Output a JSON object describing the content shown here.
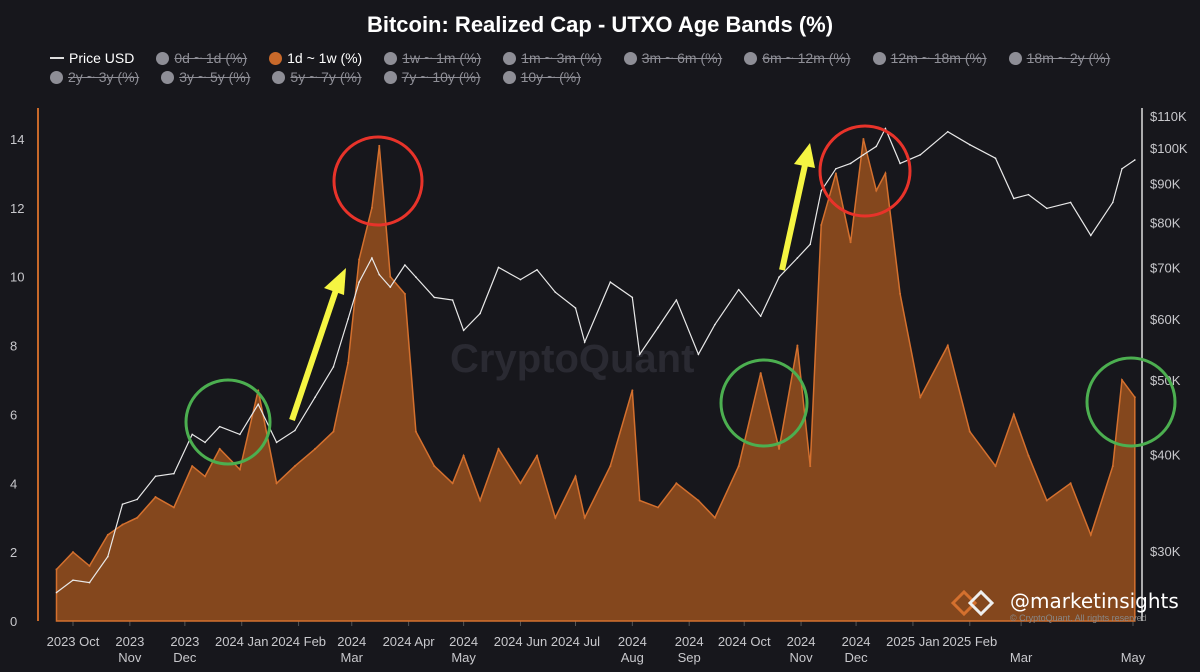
{
  "chart_data": {
    "type": "area",
    "title": "Bitcoin: Realized Cap - UTXO Age Bands (%)",
    "legend": [
      {
        "label": "Price USD",
        "active": true,
        "kind": "line"
      },
      {
        "label": "0d ~ 1d (%)",
        "active": false
      },
      {
        "label": "1d ~ 1w (%)",
        "active": true,
        "color": "#c8692a"
      },
      {
        "label": "1w ~ 1m (%)",
        "active": false
      },
      {
        "label": "1m ~ 3m (%)",
        "active": false
      },
      {
        "label": "3m ~ 6m (%)",
        "active": false
      },
      {
        "label": "6m ~ 12m (%)",
        "active": false
      },
      {
        "label": "12m ~ 18m (%)",
        "active": false
      },
      {
        "label": "18m ~ 2y (%)",
        "active": false
      },
      {
        "label": "2y ~ 3y (%)",
        "active": false
      },
      {
        "label": "3y ~ 5y (%)",
        "active": false
      },
      {
        "label": "5y ~ 7y (%)",
        "active": false
      },
      {
        "label": "7y ~ 10y (%)",
        "active": false
      },
      {
        "label": "10y ~ (%)",
        "active": false
      }
    ],
    "legend_placement": "top",
    "y_left": {
      "range": [
        0,
        14.5
      ],
      "ticks": [
        "0",
        "2",
        "4",
        "6",
        "8",
        "10",
        "12",
        "14"
      ]
    },
    "y_right": {
      "scale": "log",
      "ticks": [
        "$30K",
        "$40K",
        "$50K",
        "$60K",
        "$70K",
        "$80K",
        "$90K",
        "$100K",
        "$110K"
      ],
      "tick_values": [
        30,
        40,
        50,
        60,
        70,
        80,
        90,
        100,
        110
      ]
    },
    "x_ticks": [
      {
        "date": "2023-10-01",
        "l1": "2023 Oct",
        "l2": ""
      },
      {
        "date": "2023-11-01",
        "l1": "2023",
        "l2": "Nov"
      },
      {
        "date": "2023-12-01",
        "l1": "2023",
        "l2": "Dec"
      },
      {
        "date": "2024-01-01",
        "l1": "2024 Jan",
        "l2": ""
      },
      {
        "date": "2024-02-01",
        "l1": "2024 Feb",
        "l2": ""
      },
      {
        "date": "2024-03-01",
        "l1": "2024",
        "l2": "Mar"
      },
      {
        "date": "2024-04-01",
        "l1": "2024 Apr",
        "l2": ""
      },
      {
        "date": "2024-05-01",
        "l1": "2024",
        "l2": "May"
      },
      {
        "date": "2024-06-01",
        "l1": "2024 Jun",
        "l2": ""
      },
      {
        "date": "2024-07-01",
        "l1": "2024 Jul",
        "l2": ""
      },
      {
        "date": "2024-08-01",
        "l1": "2024",
        "l2": "Aug"
      },
      {
        "date": "2024-09-01",
        "l1": "2024",
        "l2": "Sep"
      },
      {
        "date": "2024-10-01",
        "l1": "2024 Oct",
        "l2": ""
      },
      {
        "date": "2024-11-01",
        "l1": "2024",
        "l2": "Nov"
      },
      {
        "date": "2024-12-01",
        "l1": "2024",
        "l2": "Dec"
      },
      {
        "date": "2025-01-01",
        "l1": "2025 Jan",
        "l2": ""
      },
      {
        "date": "2025-02-01",
        "l1": "2025 Feb",
        "l2": ""
      },
      {
        "date": "2025-03-01",
        "l1": "",
        "l2": "Mar"
      },
      {
        "date": "2025-05-01",
        "l1": "",
        "l2": "May"
      }
    ],
    "x": [
      "2023-09-22",
      "2023-10-01",
      "2023-10-10",
      "2023-10-20",
      "2023-10-28",
      "2023-11-05",
      "2023-11-15",
      "2023-11-25",
      "2023-12-05",
      "2023-12-12",
      "2023-12-20",
      "2023-12-31",
      "2024-01-10",
      "2024-01-20",
      "2024-01-30",
      "2024-02-10",
      "2024-02-20",
      "2024-02-28",
      "2024-03-05",
      "2024-03-12",
      "2024-03-16",
      "2024-03-22",
      "2024-03-30",
      "2024-04-05",
      "2024-04-15",
      "2024-04-25",
      "2024-05-01",
      "2024-05-10",
      "2024-05-20",
      "2024-06-01",
      "2024-06-10",
      "2024-06-20",
      "2024-07-01",
      "2024-07-06",
      "2024-07-20",
      "2024-08-01",
      "2024-08-05",
      "2024-08-15",
      "2024-08-25",
      "2024-09-06",
      "2024-09-15",
      "2024-09-28",
      "2024-10-10",
      "2024-10-20",
      "2024-10-30",
      "2024-11-06",
      "2024-11-12",
      "2024-11-20",
      "2024-11-28",
      "2024-12-05",
      "2024-12-12",
      "2024-12-17",
      "2024-12-25",
      "2025-01-05",
      "2025-01-20",
      "2025-02-01",
      "2025-02-15",
      "2025-02-25",
      "2025-03-05",
      "2025-03-15",
      "2025-03-28",
      "2025-04-08",
      "2025-04-20",
      "2025-04-25",
      "2025-05-02"
    ],
    "series": [
      {
        "name": "1d ~ 1w (%)",
        "axis": "left",
        "values": [
          1.5,
          2.0,
          1.6,
          2.5,
          2.8,
          3.0,
          3.6,
          3.3,
          4.5,
          4.2,
          5.0,
          4.4,
          6.7,
          4.0,
          4.5,
          5.0,
          5.5,
          7.5,
          10.5,
          12.0,
          13.8,
          10.0,
          9.5,
          5.5,
          4.5,
          4.0,
          4.8,
          3.5,
          5.0,
          4.0,
          4.8,
          3.0,
          4.2,
          3.0,
          4.5,
          6.7,
          3.5,
          3.3,
          4.0,
          3.5,
          3.0,
          4.5,
          7.2,
          5.0,
          8.0,
          4.5,
          11.5,
          13.0,
          11.0,
          14.0,
          12.5,
          13.0,
          9.5,
          6.5,
          8.0,
          5.5,
          4.5,
          6.0,
          4.8,
          3.5,
          4.0,
          2.5,
          4.5,
          7.0,
          6.5
        ]
      },
      {
        "name": "Price USD",
        "axis": "right",
        "unit": "K USD",
        "values": [
          26.5,
          27.5,
          27.3,
          29.5,
          34.5,
          35.0,
          37.5,
          37.8,
          42.5,
          41.5,
          43.5,
          42.5,
          46.5,
          41.5,
          43.0,
          47.5,
          52.0,
          60.0,
          67.0,
          72.0,
          68.5,
          66.0,
          70.5,
          68.0,
          64.0,
          63.5,
          58.0,
          61.0,
          70.0,
          67.5,
          69.5,
          65.0,
          62.0,
          56.0,
          67.0,
          64.0,
          54.0,
          58.5,
          63.5,
          54.0,
          59.0,
          65.5,
          60.5,
          68.0,
          72.0,
          75.0,
          88.0,
          94.0,
          95.5,
          98.0,
          100.5,
          106.0,
          95.5,
          98.0,
          105.0,
          101.0,
          97.0,
          86.0,
          87.0,
          83.5,
          85.0,
          77.0,
          85.0,
          94.0,
          96.5
        ]
      }
    ],
    "annotation_colors": {
      "peak_circles": "#e8332a",
      "low_circles": "#4caf50",
      "arrows": "#f5f542"
    },
    "watermark": "CryptoQuant"
  },
  "footer": {
    "handle": "@marketinsights",
    "copyright": "© CryptoQuant. All rights reserved"
  }
}
